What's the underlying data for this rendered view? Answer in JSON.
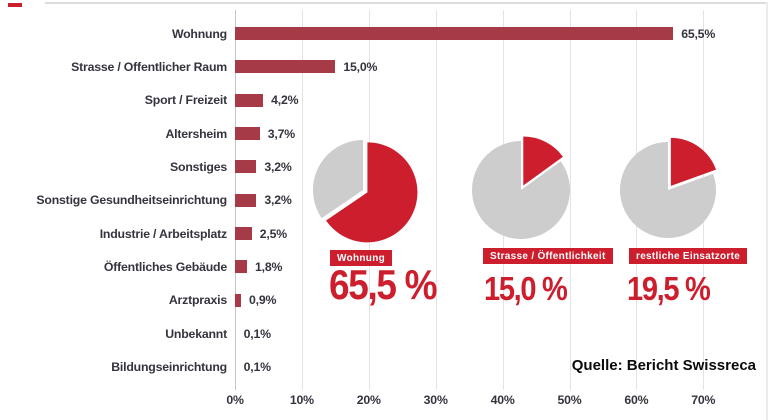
{
  "page": {
    "source_note": "Quelle: Bericht Swissreca"
  },
  "colors": {
    "bar_red": "#a63a46",
    "accent_red": "#cc1e2d",
    "pie_gray": "#cdcdce",
    "grid_line": "#e3e3e6",
    "axis_line": "#c5c5ca",
    "text_dark": "#34343e"
  },
  "chart_data": [
    {
      "type": "bar",
      "orientation": "horizontal",
      "title": "",
      "categories": [
        "Wohnung",
        "Strasse / Offentlicher Raum",
        "Sport / Freizeit",
        "Altersheim",
        "Sonstiges",
        "Sonstige Gesundheitseinrichtung",
        "Industrie / Arbeitsplatz",
        "Öffentliches Gebäude",
        "Arztpraxis",
        "Unbekannt",
        "Bildungseinrichtung"
      ],
      "values": [
        65.5,
        15.0,
        4.2,
        3.7,
        3.2,
        3.2,
        2.5,
        1.8,
        0.9,
        0.1,
        0.1
      ],
      "value_labels": [
        "65,5%",
        "15,0%",
        "4,2%",
        "3,7%",
        "3,2%",
        "3,2%",
        "2,5%",
        "1,8%",
        "0,9%",
        "0,1%",
        "0,1%"
      ],
      "xlabel": "",
      "ylabel": "",
      "xlim": [
        0,
        80
      ],
      "xticks": [
        "0%",
        "10%",
        "20%",
        "30%",
        "40%",
        "50%",
        "60%",
        "70%"
      ],
      "grid": true
    },
    {
      "type": "pie",
      "badge": "Wohnung",
      "display_value": "65,5 %",
      "values": [
        65.5,
        34.5
      ],
      "exploded_slice": 0
    },
    {
      "type": "pie",
      "badge": "Strasse / Öffentlichkeit",
      "display_value": "15,0 %",
      "values": [
        15.0,
        85.0
      ],
      "exploded_slice": 0
    },
    {
      "type": "pie",
      "badge": "restliche Einsatzorte",
      "display_value": "19,5 %",
      "values": [
        19.5,
        80.5
      ],
      "exploded_slice": 0
    }
  ]
}
